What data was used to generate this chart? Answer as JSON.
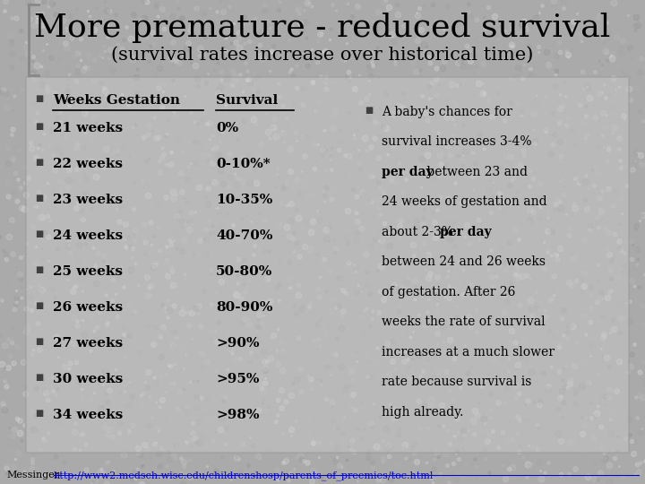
{
  "title": "More premature - reduced survival",
  "subtitle": "(survival rates increase over historical time)",
  "table_header": [
    "Weeks Gestation",
    "Survival"
  ],
  "table_rows": [
    [
      "21 weeks",
      "0%"
    ],
    [
      "22 weeks",
      "0-10%*"
    ],
    [
      "23 weeks",
      "10-35%"
    ],
    [
      "24 weeks",
      "40-70%"
    ],
    [
      "25 weeks",
      "50-80%"
    ],
    [
      "26 weeks",
      "80-90%"
    ],
    [
      "27 weeks",
      ">90%"
    ],
    [
      "30 weeks",
      ">95%"
    ],
    [
      "34 weeks",
      ">98%"
    ]
  ],
  "right_lines_info": [
    [
      [
        "A baby's chances for",
        false
      ]
    ],
    [
      [
        "survival increases 3-4%",
        false
      ]
    ],
    [
      [
        "per day",
        true
      ],
      [
        " between 23 and",
        false
      ]
    ],
    [
      [
        "24 weeks of gestation and",
        false
      ]
    ],
    [
      [
        "about 2-3% ",
        false
      ],
      [
        "per day",
        true
      ]
    ],
    [
      [
        "between 24 and 26 weeks",
        false
      ]
    ],
    [
      [
        "of gestation. After 26",
        false
      ]
    ],
    [
      [
        "weeks the rate of survival",
        false
      ]
    ],
    [
      [
        "increases at a much slower",
        false
      ]
    ],
    [
      [
        "rate because survival is",
        false
      ]
    ],
    [
      [
        "high already.",
        false
      ]
    ]
  ],
  "bg_color": "#aaaaaa",
  "box_color": "#cccccc",
  "title_color": "#000000",
  "text_color": "#000000",
  "bullet_color": "#404040",
  "footer_link_color": "#0000cc",
  "footer_label": "Messinger",
  "footer_url": "http://www2.medsch.wisc.edu/childrenshosp/parents_of_preemies/toc.html"
}
